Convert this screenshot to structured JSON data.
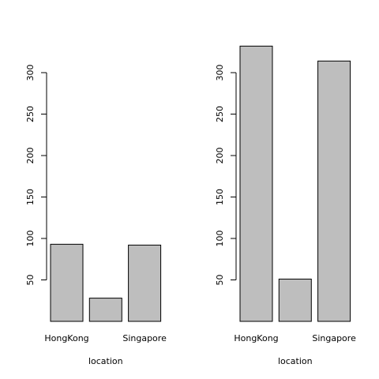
{
  "chart_data": [
    {
      "type": "bar",
      "categories": [
        "HongKong",
        null,
        "Singapore"
      ],
      "values": [
        93,
        28,
        92
      ],
      "color": "#bebebe",
      "xlabel": "location",
      "ylim": [
        0,
        345
      ],
      "yticks": [
        50,
        100,
        150,
        200,
        250,
        300
      ]
    },
    {
      "type": "bar",
      "categories": [
        "HongKong",
        null,
        "Singapore"
      ],
      "values": [
        332,
        51,
        314
      ],
      "color": "#bebebe",
      "xlabel": "location",
      "ylim": [
        0,
        345
      ],
      "yticks": [
        50,
        100,
        150,
        200,
        250,
        300
      ]
    }
  ]
}
